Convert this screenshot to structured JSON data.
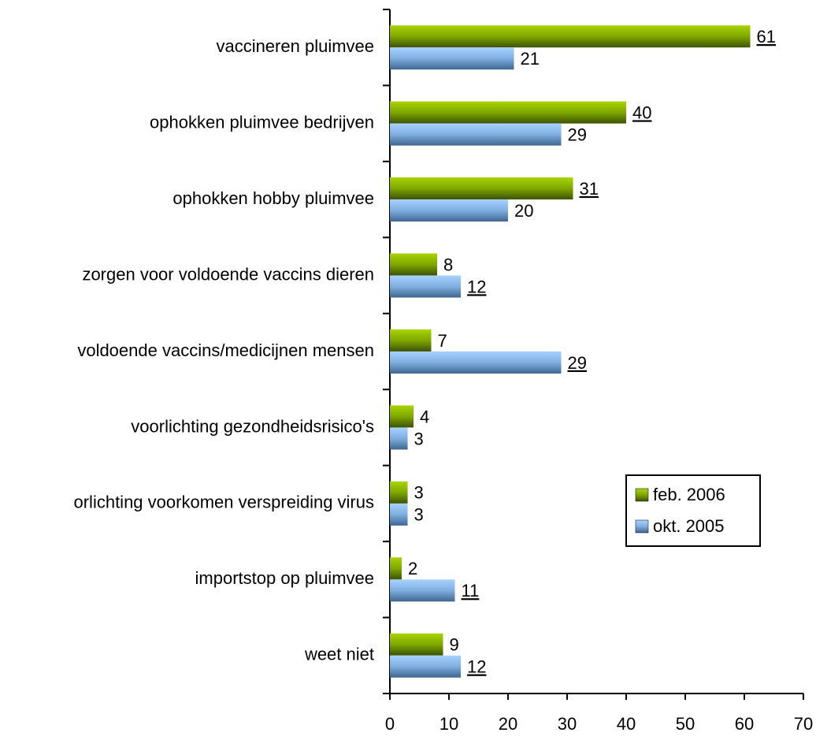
{
  "chart_data": {
    "type": "bar",
    "orientation": "horizontal",
    "categories": [
      "vaccineren pluimvee",
      "ophokken pluimvee bedrijven",
      "ophokken hobby pluimvee",
      "zorgen voor voldoende vaccins dieren",
      "voldoende vaccins/medicijnen mensen",
      "voorlichting gezondheidsrisico's",
      "orlichting voorkomen verspreiding virus",
      "importstop op pluimvee",
      "weet niet"
    ],
    "series": [
      {
        "name": "feb. 2006",
        "color": "#7fa800",
        "values": [
          61,
          40,
          31,
          8,
          7,
          4,
          3,
          2,
          9
        ],
        "underlined": [
          true,
          true,
          true,
          false,
          false,
          false,
          false,
          false,
          false
        ]
      },
      {
        "name": "okt. 2005",
        "color": "#7faee0",
        "values": [
          21,
          29,
          20,
          12,
          29,
          3,
          3,
          11,
          12
        ],
        "underlined": [
          false,
          false,
          false,
          true,
          true,
          false,
          false,
          true,
          true
        ]
      }
    ],
    "xlim": [
      0,
      70
    ],
    "xticks": [
      0,
      10,
      20,
      30,
      40,
      50,
      60,
      70
    ],
    "legend": "right"
  }
}
